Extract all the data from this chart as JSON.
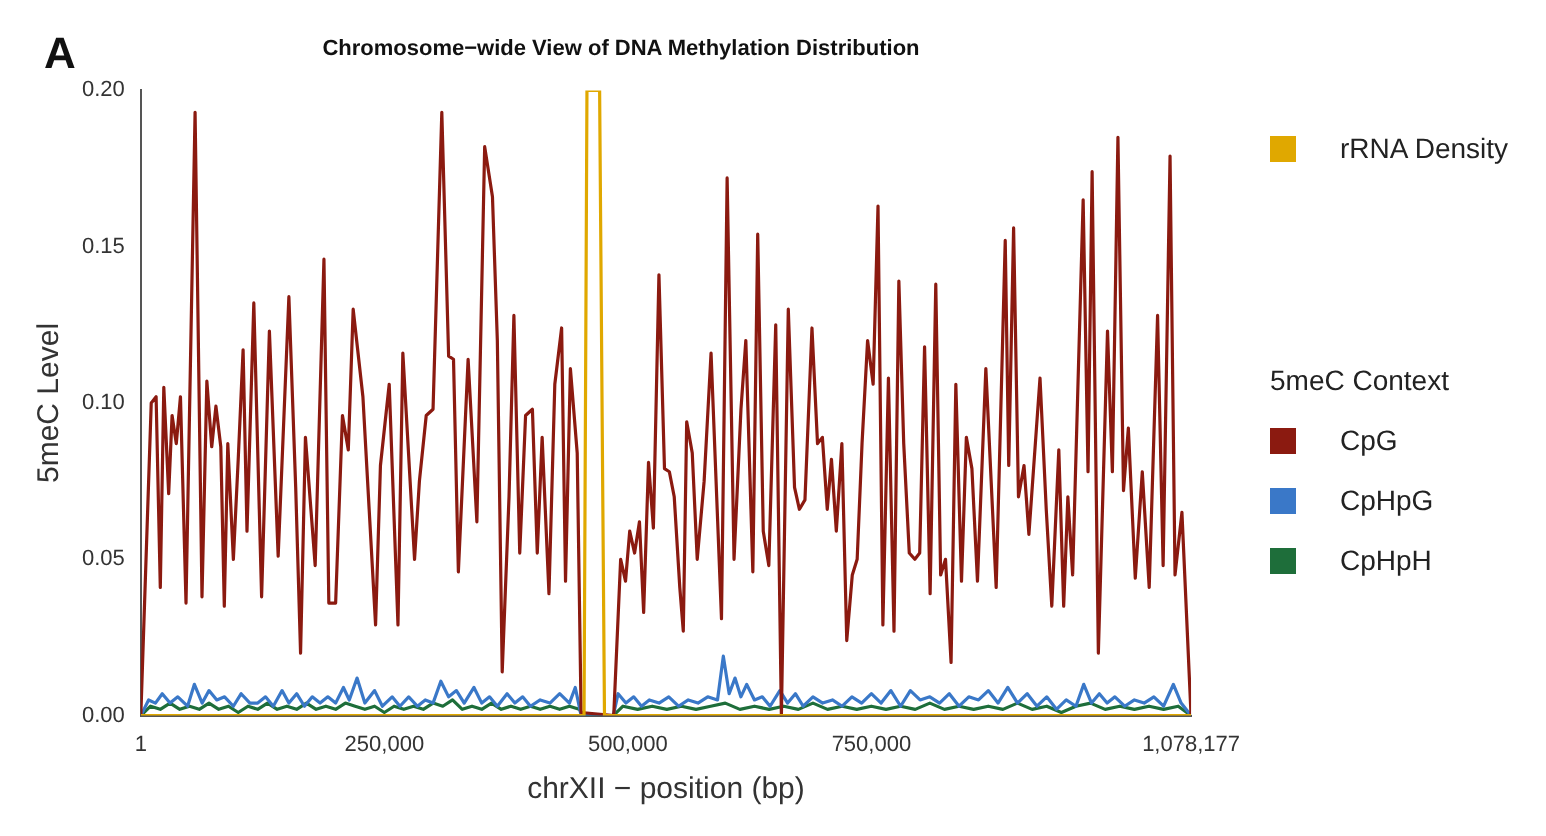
{
  "chart_data": {
    "type": "line",
    "title": "Chromosome−wide View of DNA Methylation Distribution",
    "xlabel": "chrXII − position (bp)",
    "ylabel": "5meC Level",
    "legend_title": "5meC Context",
    "annotations": [
      "A"
    ],
    "xlim": [
      1,
      1078177
    ],
    "xticks": [
      1,
      {
        "value": 250000,
        "label": "250,000"
      },
      {
        "value": 500000,
        "label": "500,000"
      },
      {
        "value": 750000,
        "label": "750,000"
      },
      {
        "value": 1078177,
        "label": "1,078,177"
      }
    ],
    "ylim": [
      0,
      0.2
    ],
    "yticks": [
      {
        "value": 0,
        "label": "0.00"
      },
      {
        "value": 0.05,
        "label": "0.05"
      },
      {
        "value": 0.1,
        "label": "0.10"
      },
      {
        "value": 0.15,
        "label": "0.15"
      },
      {
        "value": 0.2,
        "label": "0.20"
      }
    ],
    "legend": "right",
    "marker": "none",
    "line_style": "solid",
    "grid": false,
    "series": [
      {
        "name": "rRNA Density",
        "color": "#e0a800",
        "x": [
          1,
          455000,
          458000,
          471000,
          476000,
          1078177
        ],
        "values": [
          0,
          0,
          0.2,
          0.2,
          0,
          0
        ]
      },
      {
        "name": "CpG",
        "color": "#8b1a10",
        "x": [
          1,
          10700,
          15700,
          20000,
          23600,
          28600,
          32100,
          36400,
          40700,
          46400,
          55700,
          62800,
          67800,
          72800,
          77100,
          82100,
          85700,
          89300,
          95000,
          100000,
          105000,
          109000,
          116000,
          124000,
          132000,
          141000,
          152000,
          159000,
          164000,
          169000,
          179000,
          188000,
          193000,
          200000,
          207000,
          213000,
          218000,
          228000,
          241000,
          246000,
          255000,
          264000,
          269000,
          281000,
          286000,
          293000,
          300000,
          309000,
          316000,
          321000,
          326000,
          336000,
          345000,
          353000,
          361000,
          366000,
          371000,
          378000,
          383000,
          389000,
          395000,
          402000,
          407000,
          412000,
          419000,
          425000,
          432000,
          436000,
          441000,
          448000,
          452000,
          485500,
          492600,
          497600,
          501900,
          506900,
          511900,
          516200,
          521200,
          526200,
          531900,
          537600,
          542600,
          547600,
          553300,
          556900,
          560400,
          566100,
          571200,
          578300,
          585400,
          596100,
          601900,
          609000,
          616100,
          621100,
          628300,
          633300,
          639000,
          644700,
          651800,
          657600,
          664700,
          671100,
          676100,
          681800,
          689000,
          694700,
          699700,
          704700,
          709000,
          714000,
          719700,
          724700,
          730400,
          735400,
          740400,
          746100,
          751800,
          756800,
          761800,
          767500,
          773200,
          778200,
          783200,
          788900,
          794600,
          799600,
          804600,
          810300,
          816100,
          821100,
          826100,
          831800,
          836700,
          842500,
          847500,
          853200,
          858900,
          867500,
          878100,
          887400,
          891000,
          896000,
          901000,
          906700,
          911700,
          923100,
          929500,
          935200,
          942400,
          947400,
          951700,
          956600,
          967400,
          972400,
          976600,
          983000,
          992400,
          997400,
          1003100,
          1008800,
          1013800,
          1020900,
          1028100,
          1035200,
          1043800,
          1049500,
          1056600,
          1061700,
          1068800,
          1078177
        ],
        "values": [
          0,
          0.1,
          0.102,
          0.041,
          0.105,
          0.071,
          0.096,
          0.087,
          0.102,
          0.036,
          0.193,
          0.038,
          0.107,
          0.086,
          0.099,
          0.086,
          0.035,
          0.087,
          0.05,
          0.082,
          0.117,
          0.059,
          0.132,
          0.038,
          0.123,
          0.051,
          0.134,
          0.073,
          0.02,
          0.089,
          0.048,
          0.146,
          0.036,
          0.036,
          0.096,
          0.085,
          0.13,
          0.102,
          0.029,
          0.08,
          0.106,
          0.029,
          0.116,
          0.05,
          0.075,
          0.096,
          0.098,
          0.193,
          0.115,
          0.114,
          0.046,
          0.114,
          0.062,
          0.182,
          0.166,
          0.12,
          0.014,
          0.07,
          0.128,
          0.052,
          0.096,
          0.098,
          0.052,
          0.089,
          0.039,
          0.106,
          0.124,
          0.043,
          0.111,
          0.084,
          0.001,
          0,
          0.05,
          0.043,
          0.059,
          0.052,
          0.062,
          0.033,
          0.081,
          0.06,
          0.141,
          0.079,
          0.078,
          0.07,
          0.041,
          0.027,
          0.094,
          0.084,
          0.05,
          0.075,
          0.116,
          0.031,
          0.172,
          0.05,
          0.098,
          0.12,
          0.046,
          0.154,
          0.059,
          0.048,
          0.125,
          0,
          0.13,
          0.073,
          0.066,
          0.069,
          0.124,
          0.087,
          0.089,
          0.066,
          0.082,
          0.059,
          0.087,
          0.024,
          0.045,
          0.05,
          0.087,
          0.12,
          0.106,
          0.163,
          0.029,
          0.108,
          0.027,
          0.139,
          0.087,
          0.052,
          0.05,
          0.052,
          0.118,
          0.039,
          0.138,
          0.045,
          0.05,
          0.017,
          0.106,
          0.043,
          0.089,
          0.079,
          0.043,
          0.111,
          0.041,
          0.152,
          0.08,
          0.156,
          0.07,
          0.08,
          0.058,
          0.108,
          0.066,
          0.035,
          0.085,
          0.035,
          0.07,
          0.045,
          0.165,
          0.078,
          0.174,
          0.02,
          0.123,
          0.078,
          0.185,
          0.072,
          0.092,
          0.044,
          0.078,
          0.041,
          0.128,
          0.048,
          0.179,
          0.045,
          0.065,
          0
        ]
      },
      {
        "name": "CpHpG",
        "color": "#3a78c8",
        "x": [
          1,
          8000,
          15000,
          22000,
          30000,
          38000,
          48000,
          55000,
          63000,
          70000,
          78000,
          86000,
          95000,
          103000,
          112000,
          120000,
          128000,
          136000,
          145000,
          152000,
          160000,
          168000,
          176000,
          184000,
          192000,
          200000,
          208000,
          214000,
          222000,
          230000,
          240000,
          248000,
          258000,
          266000,
          275000,
          284000,
          292000,
          300000,
          308000,
          316000,
          324000,
          332000,
          342000,
          350000,
          358000,
          366000,
          376000,
          384000,
          392000,
          400000,
          410000,
          420000,
          430000,
          440000,
          446000,
          452000,
          485000,
          490000,
          498000,
          506000,
          514000,
          522000,
          532000,
          542000,
          552000,
          562000,
          572000,
          582000,
          592000,
          598000,
          604000,
          610000,
          616000,
          622000,
          630000,
          638000,
          646000,
          656000,
          664000,
          672000,
          680000,
          690000,
          700000,
          710000,
          720000,
          730000,
          740000,
          750000,
          760000,
          770000,
          780000,
          790000,
          800000,
          810000,
          820000,
          830000,
          840000,
          850000,
          860000,
          870000,
          880000,
          890000,
          900000,
          910000,
          920000,
          930000,
          940000,
          950000,
          960000,
          968000,
          976000,
          984000,
          992000,
          1000000,
          1010000,
          1020000,
          1030000,
          1040000,
          1050000,
          1060000,
          1068000,
          1078177
        ],
        "values": [
          0,
          0.005,
          0.004,
          0.007,
          0.004,
          0.006,
          0.003,
          0.01,
          0.004,
          0.008,
          0.005,
          0.006,
          0.003,
          0.007,
          0.004,
          0.004,
          0.006,
          0.003,
          0.008,
          0.004,
          0.007,
          0.003,
          0.006,
          0.004,
          0.006,
          0.004,
          0.009,
          0.005,
          0.012,
          0.004,
          0.008,
          0.003,
          0.006,
          0.003,
          0.006,
          0.003,
          0.005,
          0.004,
          0.011,
          0.006,
          0.008,
          0.004,
          0.009,
          0.004,
          0.006,
          0.003,
          0.007,
          0.004,
          0.006,
          0.003,
          0.005,
          0.004,
          0.007,
          0.004,
          0.009,
          0,
          0,
          0.007,
          0.004,
          0.006,
          0.003,
          0.005,
          0.004,
          0.006,
          0.003,
          0.005,
          0.004,
          0.006,
          0.005,
          0.019,
          0.007,
          0.012,
          0.006,
          0.01,
          0.005,
          0.006,
          0.003,
          0.008,
          0.004,
          0.007,
          0.003,
          0.006,
          0.004,
          0.005,
          0.003,
          0.006,
          0.004,
          0.007,
          0.004,
          0.008,
          0.003,
          0.008,
          0.005,
          0.006,
          0.004,
          0.007,
          0.003,
          0.006,
          0.005,
          0.008,
          0.004,
          0.009,
          0.004,
          0.007,
          0.003,
          0.006,
          0.002,
          0.005,
          0.003,
          0.01,
          0.004,
          0.007,
          0.004,
          0.006,
          0.003,
          0.005,
          0.004,
          0.006,
          0.003,
          0.01,
          0.004,
          0
        ]
      },
      {
        "name": "CpHpH",
        "color": "#1e6e3a",
        "x": [
          1,
          10000,
          20000,
          30000,
          40000,
          50000,
          60000,
          70000,
          80000,
          90000,
          100000,
          110000,
          120000,
          130000,
          140000,
          150000,
          160000,
          170000,
          180000,
          190000,
          200000,
          210000,
          220000,
          230000,
          240000,
          250000,
          260000,
          270000,
          280000,
          290000,
          300000,
          310000,
          320000,
          330000,
          340000,
          350000,
          360000,
          370000,
          380000,
          390000,
          400000,
          410000,
          420000,
          430000,
          440000,
          450000,
          455000,
          485000,
          495000,
          510000,
          525000,
          540000,
          555000,
          570000,
          585000,
          600000,
          615000,
          630000,
          645000,
          660000,
          675000,
          690000,
          705000,
          720000,
          735000,
          750000,
          765000,
          780000,
          795000,
          810000,
          825000,
          840000,
          855000,
          870000,
          885000,
          900000,
          915000,
          930000,
          945000,
          960000,
          975000,
          990000,
          1005000,
          1020000,
          1035000,
          1050000,
          1065000,
          1078177
        ],
        "values": [
          0,
          0.003,
          0.002,
          0.004,
          0.002,
          0.003,
          0.002,
          0.004,
          0.002,
          0.003,
          0.001,
          0.003,
          0.002,
          0.004,
          0.002,
          0.003,
          0.002,
          0.004,
          0.002,
          0.003,
          0.002,
          0.004,
          0.003,
          0.002,
          0.003,
          0.001,
          0.003,
          0.002,
          0.003,
          0.002,
          0.004,
          0.003,
          0.005,
          0.002,
          0.003,
          0.002,
          0.004,
          0.002,
          0.003,
          0.002,
          0.003,
          0.002,
          0.003,
          0.002,
          0.003,
          0.002,
          0,
          0,
          0.003,
          0.002,
          0.003,
          0.002,
          0.003,
          0.002,
          0.003,
          0.004,
          0.002,
          0.003,
          0.002,
          0.003,
          0.002,
          0.004,
          0.002,
          0.003,
          0.002,
          0.003,
          0.002,
          0.003,
          0.002,
          0.004,
          0.002,
          0.003,
          0.002,
          0.003,
          0.002,
          0.004,
          0.002,
          0.003,
          0.001,
          0.003,
          0.004,
          0.002,
          0.003,
          0.002,
          0.003,
          0.002,
          0.003,
          0
        ]
      }
    ]
  }
}
